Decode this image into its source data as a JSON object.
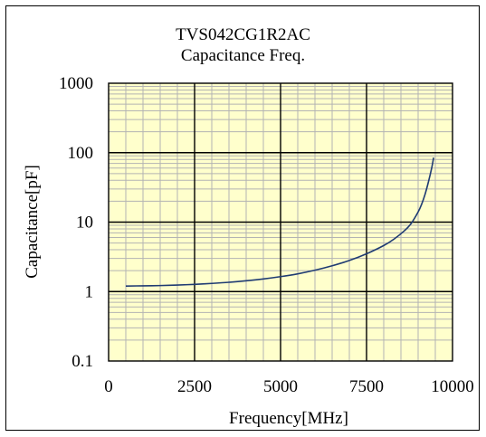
{
  "chart_data": {
    "type": "line",
    "title": "TVS042CG1R2AC",
    "subtitle": "Capacitance Freq.",
    "xlabel": "Frequency[MHz]",
    "ylabel": "Capacitance[pF]",
    "xlim": [
      0,
      10000
    ],
    "ylim": [
      0.1,
      1000
    ],
    "yscale": "log",
    "grid": true,
    "plot_background": "#ffffcc",
    "x_ticks": [
      0,
      2500,
      5000,
      7500,
      10000
    ],
    "x_tick_labels": [
      "0",
      "2500",
      "5000",
      "7500",
      "10000"
    ],
    "y_ticks": [
      0.1,
      1,
      10,
      100,
      1000
    ],
    "y_tick_labels": [
      "0.1",
      "1",
      "10",
      "100",
      "1000"
    ],
    "series": [
      {
        "color": "#1f3b73",
        "x": [
          500,
          1000,
          1500,
          2000,
          2500,
          3000,
          3500,
          4000,
          4500,
          5000,
          5500,
          6000,
          6500,
          7000,
          7500,
          8000,
          8300,
          8600,
          8800,
          9000,
          9100,
          9200,
          9300,
          9400,
          9450
        ],
        "y": [
          1.2,
          1.21,
          1.22,
          1.24,
          1.27,
          1.31,
          1.36,
          1.43,
          1.52,
          1.64,
          1.8,
          2.03,
          2.35,
          2.8,
          3.5,
          4.6,
          5.7,
          7.5,
          9.6,
          14,
          18,
          25,
          38,
          62,
          85
        ]
      }
    ]
  }
}
